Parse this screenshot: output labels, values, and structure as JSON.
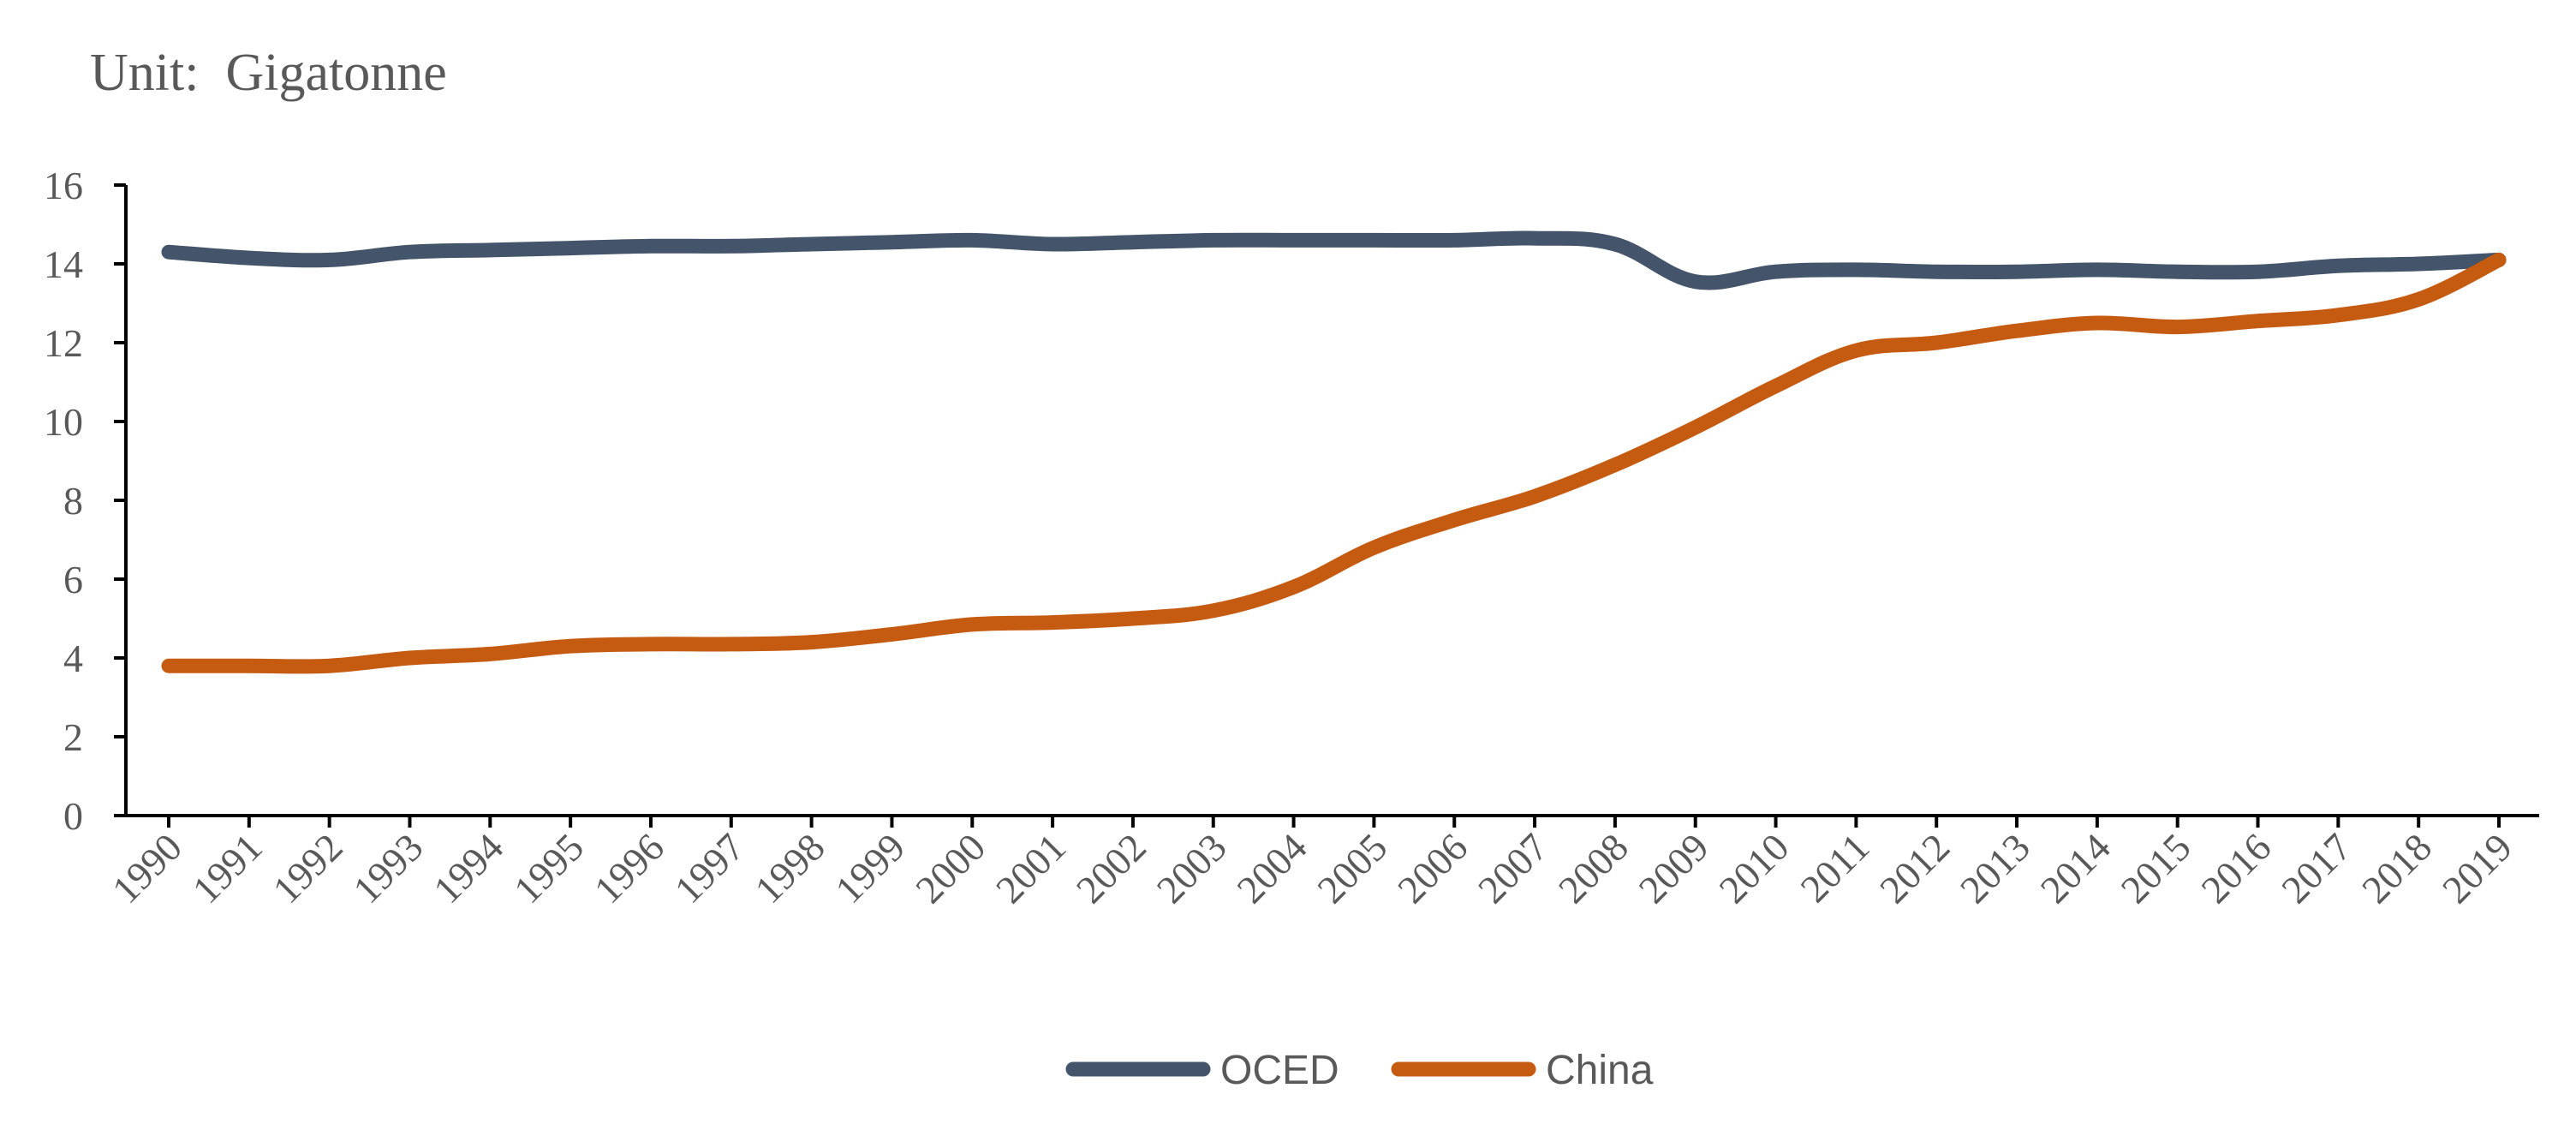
{
  "chart_data": {
    "type": "line",
    "unit_label": "Unit:  Gigatonne",
    "categories": [
      "1990",
      "1991",
      "1992",
      "1993",
      "1994",
      "1995",
      "1996",
      "1997",
      "1998",
      "1999",
      "2000",
      "2001",
      "2002",
      "2003",
      "2004",
      "2005",
      "2006",
      "2007",
      "2008",
      "2009",
      "2010",
      "2011",
      "2012",
      "2013",
      "2014",
      "2015",
      "2016",
      "2017",
      "2018",
      "2019"
    ],
    "series": [
      {
        "name": "OCED",
        "color": "#44546A",
        "values": [
          14.3,
          14.15,
          14.1,
          14.3,
          14.35,
          14.4,
          14.45,
          14.45,
          14.5,
          14.55,
          14.6,
          14.5,
          14.55,
          14.6,
          14.6,
          14.6,
          14.6,
          14.65,
          14.5,
          13.55,
          13.8,
          13.85,
          13.8,
          13.8,
          13.85,
          13.8,
          13.8,
          13.95,
          14.0,
          14.1
        ]
      },
      {
        "name": "China",
        "color": "#C55A11",
        "values": [
          3.8,
          3.8,
          3.8,
          4.0,
          4.1,
          4.3,
          4.35,
          4.35,
          4.4,
          4.6,
          4.85,
          4.9,
          5.0,
          5.2,
          5.8,
          6.8,
          7.5,
          8.1,
          8.9,
          9.85,
          10.9,
          11.8,
          12.0,
          12.3,
          12.5,
          12.4,
          12.55,
          12.7,
          13.1,
          14.1
        ]
      }
    ],
    "ylim": [
      0,
      16
    ],
    "yticks": [
      "0",
      "2",
      "4",
      "6",
      "8",
      "10",
      "12",
      "14",
      "16"
    ],
    "legend_position": "bottom-center",
    "grid": false
  }
}
